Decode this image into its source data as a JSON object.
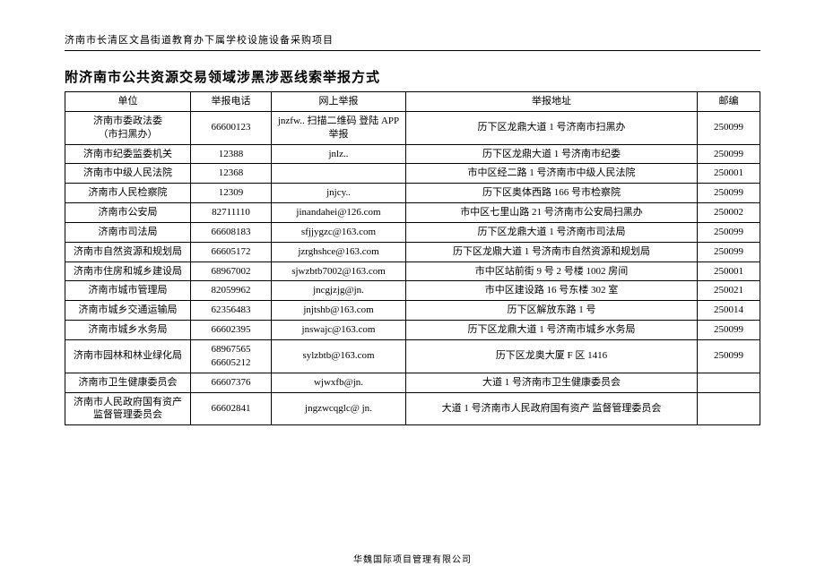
{
  "header": "济南市长清区文昌街道教育办下属学校设施设备采购项目",
  "title": "附济南市公共资源交易领域涉黑涉恶线索举报方式",
  "footer": "华魏国际项目管理有限公司",
  "columns": [
    "单位",
    "举报电话",
    "网上举报",
    "举报地址",
    "邮编"
  ],
  "rows": [
    {
      "unit": "济南市委政法委\n（市扫黑办）",
      "phone": "66600123",
      "web": "jnzfw.. 扫描二维码 登陆 APP 举报",
      "addr": "历下区龙鼎大道 1 号济南市扫黑办",
      "zip": "250099"
    },
    {
      "unit": "济南市纪委监委机关",
      "phone": "12388",
      "web": "jnlz..",
      "addr": "历下区龙鼎大道 1 号济南市纪委",
      "zip": "250099"
    },
    {
      "unit": "济南市中级人民法院",
      "phone": "12368",
      "web": "",
      "addr": "市中区经二路 1 号济南市中级人民法院",
      "zip": "250001"
    },
    {
      "unit": "济南市人民检察院",
      "phone": "12309",
      "web": "jnjcy..",
      "addr": "历下区奥体西路 166 号市检察院",
      "zip": "250099"
    },
    {
      "unit": "济南市公安局",
      "phone": "82711110",
      "web": "jinandahei@126.com",
      "addr": "市中区七里山路 21 号济南市公安局扫黑办",
      "zip": "250002"
    },
    {
      "unit": "济南市司法局",
      "phone": "66608183",
      "web": "sfjjygzc@163.com",
      "addr": "历下区龙鼎大道 1 号济南市司法局",
      "zip": "250099"
    },
    {
      "unit": "济南市自然资源和规划局",
      "phone": "66605172",
      "web": "jzrghshce@163.com",
      "addr": "历下区龙鼎大道 1 号济南市自然资源和规划局",
      "zip": "250099"
    },
    {
      "unit": "济南市住房和城乡建设局",
      "phone": "68967002",
      "web": "sjwzbtb7002@163.com",
      "addr": "市中区站前街 9 号 2 号楼 1002 房间",
      "zip": "250001"
    },
    {
      "unit": "济南市城市管理局",
      "phone": "82059962",
      "web": "jncgjzjg@jn.",
      "addr": "市中区建设路 16 号东楼 302 室",
      "zip": "250021"
    },
    {
      "unit": "济南市城乡交通运输局",
      "phone": "62356483",
      "web": "jnjtshb@163.com",
      "addr": "历下区解放东路 1 号",
      "zip": "250014"
    },
    {
      "unit": "济南市城乡水务局",
      "phone": "66602395",
      "web": "jnswajc@163.com",
      "addr": "历下区龙鼎大道 1 号济南市城乡水务局",
      "zip": "250099"
    },
    {
      "unit": "济南市园林和林业绿化局",
      "phone": "68967565\n66605212",
      "web": "sylzbtb@163.com",
      "addr": "历下区龙奥大厦 F 区 1416",
      "zip": "250099"
    },
    {
      "unit": "济南市卫生健康委员会",
      "phone": "66607376",
      "web": "wjwxfb@jn.",
      "addr": "大道 1 号济南市卫生健康委员会",
      "zip": ""
    },
    {
      "unit": "济南市人民政府国有资产监督管理委员会",
      "phone": "66602841",
      "web": "jngzwcqglc@ jn.",
      "addr": "大道 1 号济南市人民政府国有资产 监督管理委员会",
      "zip": ""
    }
  ]
}
